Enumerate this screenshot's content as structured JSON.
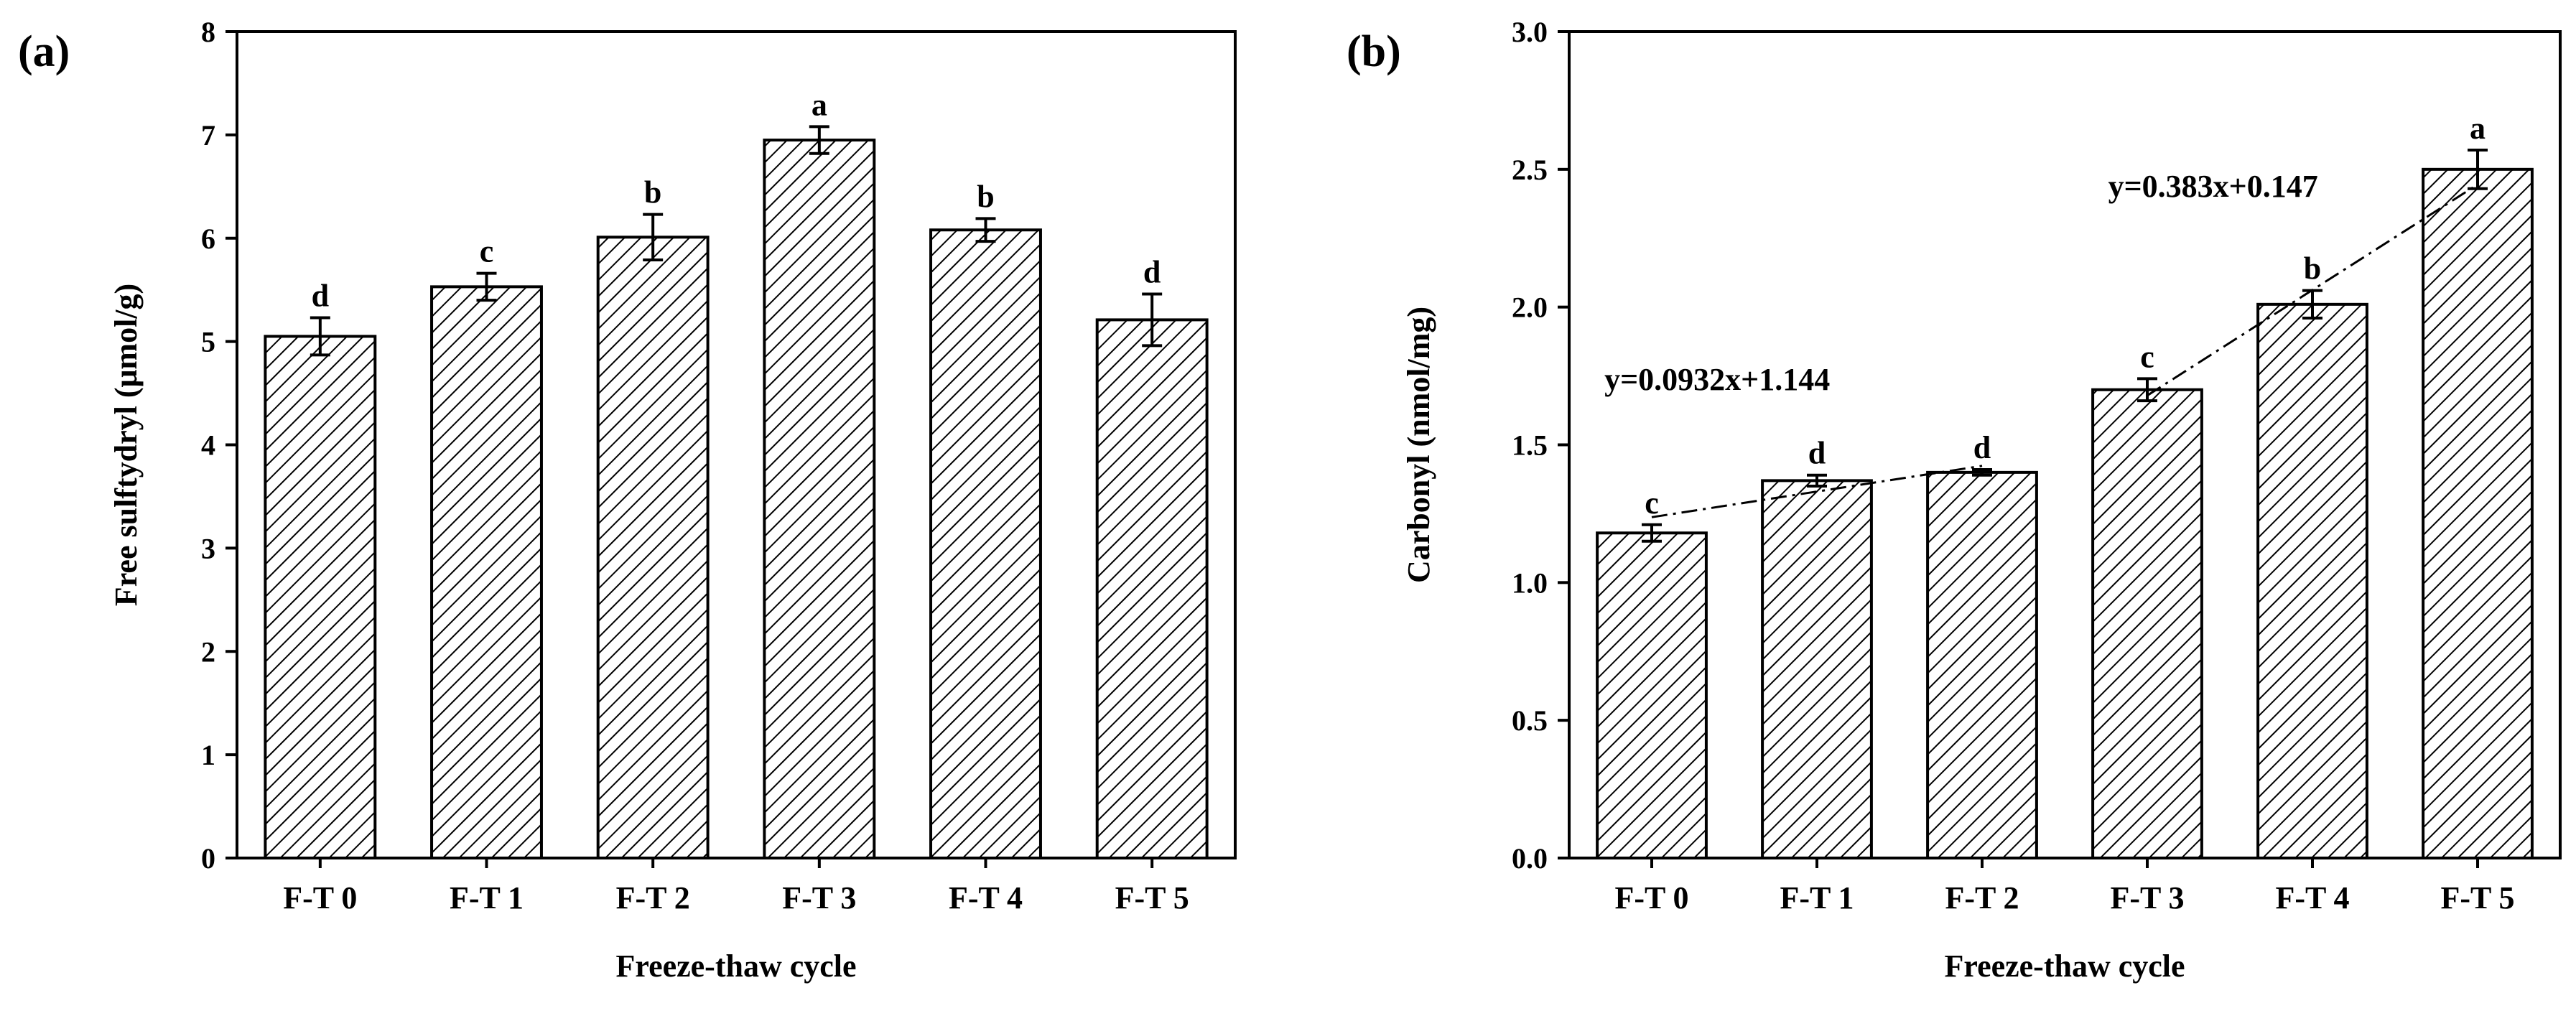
{
  "figure": {
    "colors": {
      "ink": "#000000",
      "background": "#ffffff",
      "hatch": "#000000"
    }
  },
  "chart_data": [
    {
      "type": "bar",
      "panel_label": "(a)",
      "xlabel": "Freeze-thaw cycle",
      "ylabel": "Free sulftydryl (μmol/g)",
      "categories": [
        "F-T 0",
        "F-T 1",
        "F-T 2",
        "F-T 3",
        "F-T 4",
        "F-T 5"
      ],
      "values": [
        5.05,
        5.53,
        6.01,
        6.95,
        6.08,
        5.21
      ],
      "errors": [
        0.18,
        0.13,
        0.22,
        0.13,
        0.11,
        0.25
      ],
      "significance": [
        "d",
        "c",
        "b",
        "a",
        "b",
        "d"
      ],
      "ylim": [
        0,
        8
      ],
      "yticks": [
        "0",
        "1",
        "2",
        "3",
        "4",
        "5",
        "6",
        "7",
        "8"
      ],
      "fill": "diagonal-hatch",
      "grid": false
    },
    {
      "type": "bar",
      "panel_label": "(b)",
      "xlabel": "Freeze-thaw cycle",
      "ylabel": "Carbonyl (nmol/mg)",
      "categories": [
        "F-T 0",
        "F-T 1",
        "F-T 2",
        "F-T 3",
        "F-T 4",
        "F-T 5"
      ],
      "values": [
        1.18,
        1.37,
        1.4,
        1.7,
        2.01,
        2.5
      ],
      "errors": [
        0.03,
        0.02,
        0.01,
        0.04,
        0.05,
        0.07
      ],
      "significance": [
        "c",
        "d",
        "d",
        "c",
        "b",
        "a"
      ],
      "ylim": [
        0,
        3.0
      ],
      "yticks": [
        "0.0",
        "0.5",
        "1.0",
        "1.5",
        "2.0",
        "2.5",
        "3.0"
      ],
      "fill": "diagonal-hatch",
      "grid": false,
      "trendlines": [
        {
          "label": "y=0.0932x+1.144",
          "slope": 0.0932,
          "intercept": 1.144,
          "x_from": 0,
          "x_to": 2,
          "label_anchor_x": 0.0,
          "label_anchor_y": 1.7
        },
        {
          "label": "y=0.383x+0.147",
          "slope": 0.383,
          "intercept": 0.147,
          "x_from": 3,
          "x_to": 5,
          "label_anchor_x": 3.05,
          "label_anchor_y": 2.4
        }
      ]
    }
  ]
}
